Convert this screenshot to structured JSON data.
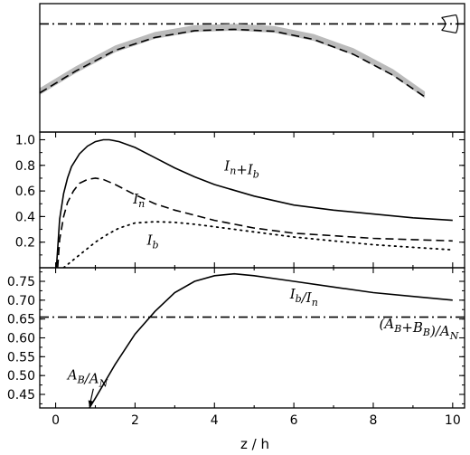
{
  "chart_data": [
    {
      "panel": "geometry",
      "type": "line",
      "xlim": [
        -0.4,
        10.3
      ],
      "ylim": [
        -1.6,
        0.3
      ],
      "series": [
        {
          "style": "dashdot",
          "color": "#000000",
          "x": [
            -0.4,
            10.3
          ],
          "y": [
            0,
            0
          ]
        },
        {
          "style": "band",
          "color": "#bbbbbb",
          "x": [
            -0.4,
            0.5,
            1.5,
            2.5,
            3.5,
            4.5,
            5.5,
            6.5,
            7.5,
            8.5,
            9.3
          ],
          "y": [
            -0.95,
            -0.63,
            -0.32,
            -0.12,
            -0.02,
            0.0,
            -0.03,
            -0.15,
            -0.36,
            -0.67,
            -1.0
          ],
          "thickness": 0.1
        },
        {
          "style": "dashed",
          "color": "#000000",
          "x": [
            -0.4,
            0.5,
            1.5,
            2.5,
            3.5,
            4.5,
            5.5,
            6.5,
            7.5,
            8.5,
            9.3
          ],
          "y": [
            -1.02,
            -0.7,
            -0.39,
            -0.2,
            -0.1,
            -0.08,
            -0.11,
            -0.23,
            -0.45,
            -0.76,
            -1.08
          ]
        }
      ],
      "annotations": [
        {
          "icon": "eye-icon",
          "x": 9.95,
          "y": 0
        }
      ]
    },
    {
      "panel": "intensities",
      "type": "line",
      "xlim": [
        -0.4,
        10.3
      ],
      "ylim": [
        0.0,
        1.06
      ],
      "yticks": [
        "0.2",
        "0.4",
        "0.6",
        "0.8",
        "1.0"
      ],
      "series": [
        {
          "style": "solid",
          "x": [
            0.02,
            0.1,
            0.2,
            0.3,
            0.4,
            0.6,
            0.8,
            1.0,
            1.2,
            1.35,
            1.6,
            2.0,
            2.5,
            3.0,
            3.5,
            4.0,
            5.0,
            6.0,
            7.0,
            8.0,
            9.0,
            10.0
          ],
          "y": [
            0.0,
            0.38,
            0.58,
            0.7,
            0.79,
            0.89,
            0.95,
            0.985,
            1.0,
            1.0,
            0.985,
            0.94,
            0.86,
            0.78,
            0.71,
            0.65,
            0.56,
            0.49,
            0.45,
            0.42,
            0.39,
            0.37
          ]
        },
        {
          "style": "dashed",
          "x": [
            0.05,
            0.1,
            0.2,
            0.3,
            0.45,
            0.6,
            0.8,
            1.0,
            1.2,
            1.5,
            2.0,
            2.5,
            3.0,
            4.0,
            5.0,
            6.0,
            7.0,
            8.0,
            9.0,
            10.0
          ],
          "y": [
            0.0,
            0.22,
            0.4,
            0.51,
            0.6,
            0.66,
            0.69,
            0.7,
            0.69,
            0.65,
            0.57,
            0.5,
            0.45,
            0.37,
            0.31,
            0.27,
            0.25,
            0.23,
            0.22,
            0.21
          ]
        },
        {
          "style": "dotted",
          "x": [
            0.2,
            0.4,
            0.6,
            0.8,
            1.0,
            1.3,
            1.6,
            2.0,
            2.5,
            3.0,
            3.5,
            4.0,
            4.5,
            5.0,
            6.0,
            7.0,
            8.0,
            9.0,
            10.0
          ],
          "y": [
            0.0,
            0.05,
            0.1,
            0.15,
            0.2,
            0.26,
            0.31,
            0.35,
            0.36,
            0.355,
            0.34,
            0.32,
            0.3,
            0.28,
            0.24,
            0.21,
            0.18,
            0.16,
            0.14
          ]
        }
      ],
      "labels": [
        {
          "base": "I",
          "parts": [
            {
              "t": "I",
              "s": "n"
            },
            {
              "t": "+I",
              "s": "b"
            }
          ],
          "x": 4.25,
          "y": 0.76
        },
        {
          "parts": [
            {
              "t": "I",
              "s": "n"
            }
          ],
          "x": 1.95,
          "y": 0.5
        },
        {
          "parts": [
            {
              "t": "I",
              "s": "b"
            }
          ],
          "x": 2.3,
          "y": 0.18
        }
      ]
    },
    {
      "panel": "ratio",
      "type": "line",
      "xlabel": "z / h",
      "xlim": [
        -0.4,
        10.3
      ],
      "xticks": [
        "0",
        "2",
        "4",
        "6",
        "8",
        "10"
      ],
      "ylim": [
        0.414,
        0.786
      ],
      "yticks": [
        "0.45",
        "0.50",
        "0.55",
        "0.60",
        "0.65",
        "0.70",
        "0.75"
      ],
      "series": [
        {
          "style": "solid",
          "x": [
            0.85,
            1.0,
            1.5,
            2.0,
            2.5,
            3.0,
            3.5,
            4.0,
            4.5,
            5.0,
            6.0,
            7.0,
            8.0,
            9.0,
            10.0
          ],
          "y": [
            0.414,
            0.44,
            0.53,
            0.61,
            0.67,
            0.72,
            0.75,
            0.765,
            0.77,
            0.765,
            0.75,
            0.735,
            0.72,
            0.71,
            0.7
          ]
        },
        {
          "style": "dashdot",
          "x": [
            -0.4,
            10.3
          ],
          "y": [
            0.655,
            0.655
          ]
        }
      ],
      "labels": [
        {
          "parts": [
            {
              "t": "I",
              "s": "b"
            },
            {
              "t": "/I",
              "s": "n"
            }
          ],
          "x": 5.9,
          "y": 0.705
        },
        {
          "parts": [
            {
              "t": "(A",
              "s": "B"
            },
            {
              "t": "+B",
              "s": "B"
            },
            {
              "t": ")/A",
              "s": "N"
            }
          ],
          "x": 8.15,
          "y": 0.625
        },
        {
          "parts": [
            {
              "t": "A",
              "s": "B"
            },
            {
              "t": "/A",
              "s": "N"
            }
          ],
          "x": 0.3,
          "y": 0.49
        }
      ],
      "arrow": {
        "from": [
          0.95,
          0.465
        ],
        "to": [
          0.85,
          0.418
        ]
      }
    }
  ]
}
